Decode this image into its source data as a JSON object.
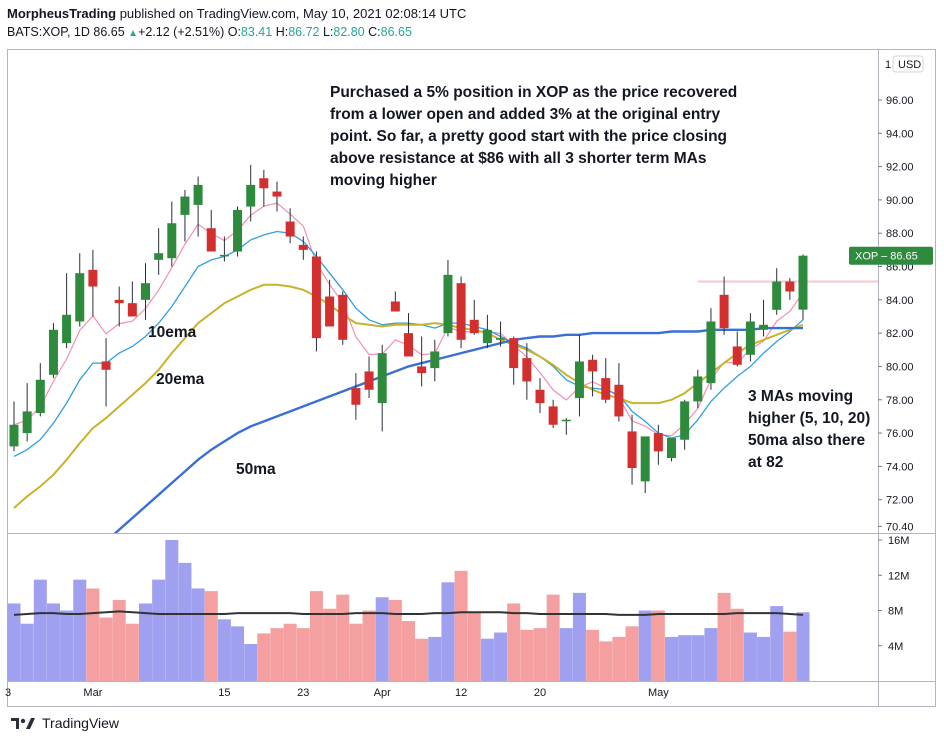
{
  "header": {
    "author": "MorpheusTrading",
    "published": "published on TradingView.com, May 10, 2021 02:08:14 UTC",
    "symbol": "BATS:XOP, 1D",
    "last": "86.65",
    "change": "+2.12 (+2.51%)",
    "o_label": "O:",
    "o_val": "83.41",
    "h_label": "H:",
    "h_val": "86.72",
    "l_label": "L:",
    "l_val": "82.80",
    "c_label": "C:",
    "c_val": "86.65"
  },
  "annotations": {
    "main": [
      "Purchased a 5% position in XOP as the price recovered",
      "from a lower open and added 3% at the original entry",
      "point.   So far, a pretty good start with the price closing",
      "above resistance at $86 with all 3 shorter term MAs",
      "moving higher"
    ],
    "ema10": "10ema",
    "ema20": "20ema",
    "ma50": "50ma",
    "right": [
      "3 MAs moving",
      "higher (5, 10, 20)",
      "50ma also there",
      "at 82"
    ]
  },
  "footer": {
    "brand": "TradingView"
  },
  "colors": {
    "up": "#2e8b3e",
    "down": "#d32f2f",
    "vol_up": "#9fa0ef",
    "vol_down": "#f4a0a0",
    "ema5": "#f48fb1",
    "ema10": "#2f9fe0",
    "ema20": "#c8b42a",
    "ma50": "#3a6fd8",
    "vol_ma": "#333333",
    "price_tag": "#2e8b3e"
  },
  "chart_data": {
    "type": "candlestick",
    "price_axis": {
      "unit": "USD",
      "ylim": [
        70.0,
        99.0
      ],
      "ticks": [
        70.4,
        72.0,
        74.0,
        76.0,
        78.0,
        80.0,
        82.0,
        84.0,
        86.0,
        88.0,
        90.0,
        92.0,
        94.0,
        96.0
      ],
      "top_tick": "1"
    },
    "price_tag": {
      "label": "XOP",
      "value": "86.65"
    },
    "resistance": 85.1,
    "x_labels": [
      "3",
      "Mar",
      "15",
      "23",
      "Apr",
      "12",
      "20",
      "May"
    ],
    "x_label_positions": [
      0,
      6,
      16,
      22,
      28,
      34,
      40,
      49
    ],
    "candles": [
      [
        75.2,
        77.9,
        74.9,
        76.5
      ],
      [
        76.0,
        79.0,
        75.5,
        77.3
      ],
      [
        77.2,
        80.2,
        77.0,
        79.2
      ],
      [
        79.5,
        82.6,
        79.3,
        82.2
      ],
      [
        81.4,
        85.6,
        81.1,
        83.1
      ],
      [
        82.7,
        86.8,
        82.4,
        85.6
      ],
      [
        85.8,
        87.0,
        83.0,
        84.8
      ],
      [
        80.3,
        81.7,
        77.6,
        79.8
      ],
      [
        84.0,
        84.8,
        82.4,
        83.8
      ],
      [
        83.8,
        85.1,
        83.0,
        83.0
      ],
      [
        84.0,
        86.2,
        82.8,
        85.0
      ],
      [
        86.4,
        88.3,
        85.5,
        86.8
      ],
      [
        86.5,
        89.9,
        86.0,
        88.6
      ],
      [
        89.1,
        90.6,
        87.5,
        90.2
      ],
      [
        89.7,
        91.4,
        87.8,
        90.9
      ],
      [
        88.3,
        89.4,
        87.0,
        86.9
      ],
      [
        86.7,
        87.8,
        86.3,
        86.7
      ],
      [
        86.9,
        89.6,
        86.6,
        89.4
      ],
      [
        89.6,
        92.1,
        88.7,
        90.9
      ],
      [
        91.3,
        91.8,
        89.6,
        90.7
      ],
      [
        90.5,
        91.1,
        89.3,
        90.2
      ],
      [
        88.7,
        89.5,
        87.4,
        87.8
      ],
      [
        87.3,
        87.8,
        86.4,
        87.0
      ],
      [
        86.6,
        86.9,
        80.9,
        81.7
      ],
      [
        84.2,
        85.2,
        82.4,
        82.4
      ],
      [
        84.3,
        84.5,
        81.3,
        81.6
      ],
      [
        78.7,
        79.6,
        76.8,
        77.7
      ],
      [
        79.7,
        80.6,
        78.1,
        78.6
      ],
      [
        77.8,
        81.3,
        76.1,
        80.8
      ],
      [
        83.9,
        84.5,
        83.3,
        83.3
      ],
      [
        82.0,
        83.2,
        80.7,
        80.6
      ],
      [
        80.0,
        81.8,
        78.8,
        79.6
      ],
      [
        79.9,
        81.6,
        79.1,
        80.9
      ],
      [
        82.0,
        86.4,
        81.8,
        85.5
      ],
      [
        85.0,
        85.4,
        81.1,
        81.6
      ],
      [
        82.8,
        84.0,
        81.9,
        82.0
      ],
      [
        81.4,
        83.1,
        81.1,
        82.2
      ],
      [
        81.6,
        82.7,
        81.2,
        81.7
      ],
      [
        81.7,
        81.8,
        78.9,
        79.9
      ],
      [
        80.5,
        81.4,
        78.0,
        79.1
      ],
      [
        78.6,
        79.3,
        77.2,
        77.8
      ],
      [
        77.6,
        78.0,
        76.3,
        76.5
      ],
      [
        76.8,
        76.9,
        75.9,
        76.8
      ],
      [
        78.1,
        81.9,
        77.0,
        80.3
      ],
      [
        80.4,
        80.7,
        78.2,
        79.7
      ],
      [
        79.3,
        80.5,
        77.8,
        78.0
      ],
      [
        78.9,
        80.2,
        76.7,
        77.0
      ],
      [
        76.1,
        77.1,
        72.9,
        73.9
      ],
      [
        73.1,
        75.7,
        72.4,
        75.8
      ],
      [
        76.0,
        76.5,
        74.1,
        74.9
      ],
      [
        74.5,
        75.6,
        74.3,
        75.7
      ],
      [
        75.6,
        78.0,
        75.0,
        77.9
      ],
      [
        77.9,
        79.8,
        77.5,
        79.4
      ],
      [
        79.0,
        83.5,
        78.6,
        82.7
      ],
      [
        84.3,
        85.4,
        81.9,
        82.3
      ],
      [
        81.2,
        82.1,
        80.0,
        80.1
      ],
      [
        80.7,
        83.2,
        80.3,
        82.7
      ],
      [
        82.2,
        84.0,
        81.8,
        82.5
      ],
      [
        83.4,
        85.9,
        83.1,
        85.1
      ],
      [
        85.1,
        85.3,
        84.0,
        84.5
      ],
      [
        83.41,
        86.72,
        82.8,
        86.65
      ]
    ],
    "volume": {
      "unit": "M",
      "ylim": [
        0,
        16
      ],
      "ticks": [
        4,
        8,
        12,
        16
      ],
      "values": [
        8.8,
        6.5,
        11.5,
        8.8,
        8.0,
        11.5,
        10.5,
        7.2,
        9.2,
        6.5,
        8.8,
        11.5,
        16.0,
        13.4,
        10.5,
        10.2,
        7.0,
        6.2,
        4.2,
        5.4,
        6.0,
        6.5,
        6.0,
        10.2,
        8.2,
        9.8,
        6.5,
        8.0,
        9.5,
        9.2,
        6.8,
        4.8,
        5.0,
        11.2,
        12.5,
        7.8,
        4.8,
        5.5,
        8.8,
        5.8,
        6.0,
        9.8,
        6.0,
        10.0,
        5.8,
        4.5,
        5.0,
        6.2,
        8.0,
        8.0,
        5.0,
        5.2,
        5.2,
        6.0,
        10.0,
        8.2,
        5.5,
        5.0,
        8.5,
        5.6,
        7.8
      ],
      "ma": [
        7.5,
        7.6,
        7.7,
        7.7,
        7.6,
        7.6,
        7.7,
        7.8,
        7.9,
        7.8,
        7.7,
        7.6,
        7.6,
        7.6,
        7.6,
        7.6,
        7.6,
        7.7,
        7.7,
        7.7,
        7.7,
        7.7,
        7.6,
        7.6,
        7.6,
        7.6,
        7.7,
        7.7,
        7.7,
        7.6,
        7.6,
        7.6,
        7.7,
        7.7,
        7.8,
        7.8,
        7.8,
        7.8,
        7.7,
        7.7,
        7.6,
        7.6,
        7.6,
        7.6,
        7.6,
        7.6,
        7.5,
        7.5,
        7.5,
        7.6,
        7.6,
        7.6,
        7.6,
        7.6,
        7.6,
        7.7,
        7.7,
        7.7,
        7.7,
        7.6,
        7.5
      ]
    },
    "series": [
      {
        "name": "10ema",
        "values": [
          74.6,
          75.0,
          75.6,
          76.6,
          77.8,
          79.2,
          80.2,
          80.2,
          80.8,
          81.2,
          81.8,
          82.6,
          83.6,
          84.8,
          86.0,
          86.4,
          86.6,
          87.0,
          87.6,
          87.9,
          88.1,
          88.0,
          87.5,
          86.6,
          85.6,
          84.6,
          83.5,
          82.8,
          82.5,
          82.6,
          82.6,
          82.5,
          82.3,
          82.6,
          82.6,
          82.4,
          82.2,
          81.8,
          81.4,
          81.1,
          80.6,
          80.0,
          79.2,
          78.8,
          78.7,
          78.6,
          78.3,
          77.3,
          76.7,
          76.0,
          75.7,
          75.9,
          76.8,
          77.9,
          78.7,
          79.4,
          80.0,
          80.8,
          81.5,
          82.1,
          82.8
        ]
      },
      {
        "name": "20ema",
        "values": [
          71.5,
          72.2,
          72.8,
          73.5,
          74.4,
          75.4,
          76.3,
          76.9,
          77.6,
          78.3,
          79.0,
          79.8,
          80.8,
          81.7,
          82.6,
          83.2,
          83.8,
          84.2,
          84.6,
          84.9,
          84.9,
          84.8,
          84.6,
          84.2,
          83.7,
          83.1,
          82.6,
          82.5,
          82.4,
          82.5,
          82.5,
          82.5,
          82.6,
          82.5,
          82.3,
          82.2,
          82.0,
          81.6,
          81.3,
          81.0,
          80.6,
          80.1,
          79.5,
          79.0,
          78.6,
          78.3,
          78.1,
          77.8,
          77.8,
          77.8,
          78.0,
          78.4,
          79.0,
          79.6,
          80.2,
          80.8,
          81.3,
          81.6,
          81.9,
          82.2,
          82.5
        ]
      },
      {
        "name": "50ma",
        "values": [
          65.5,
          66.0,
          66.5,
          67.0,
          67.6,
          68.2,
          68.8,
          69.5,
          70.2,
          70.9,
          71.6,
          72.3,
          73.0,
          73.7,
          74.4,
          75.0,
          75.5,
          76.0,
          76.4,
          76.7,
          77.0,
          77.3,
          77.6,
          77.9,
          78.2,
          78.5,
          78.8,
          79.1,
          79.4,
          79.7,
          80.0,
          80.2,
          80.4,
          80.6,
          80.8,
          81.0,
          81.2,
          81.4,
          81.6,
          81.7,
          81.8,
          81.8,
          81.9,
          81.9,
          82.0,
          82.0,
          82.0,
          82.0,
          82.0,
          82.0,
          82.1,
          82.1,
          82.1,
          82.2,
          82.2,
          82.2,
          82.2,
          82.3,
          82.3,
          82.3,
          82.3
        ]
      }
    ]
  }
}
